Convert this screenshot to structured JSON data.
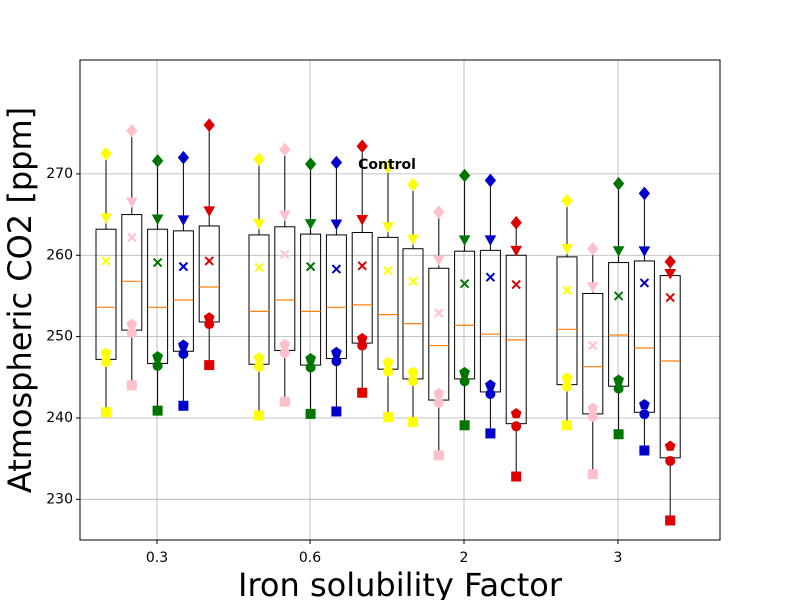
{
  "chart_data": {
    "type": "box",
    "title": "",
    "xlabel": "Iron solubility Factor",
    "ylabel": "Atmospheric CO2 [ppm]",
    "ylim": [
      225,
      284
    ],
    "yticks": [
      230,
      240,
      250,
      260,
      270
    ],
    "grid": true,
    "groups": [
      "0.3",
      "0.6",
      "2",
      "3"
    ],
    "annotation": "Control",
    "annotation_anchor": {
      "group": "0.6",
      "y": 271.2
    },
    "colors": {
      "box_edge": "#000000",
      "median": "#ff7f0e",
      "grid": "#b0b0b0",
      "series": [
        "#ffff00",
        "#ffc0cb",
        "#007500",
        "#0000cc",
        "#dd0000"
      ]
    },
    "boxes": [
      {
        "group": "0.3",
        "series": 0,
        "min": 240.7,
        "q1": 247.2,
        "median": 253.6,
        "q3": 263.2,
        "max": 272.5,
        "mean": 259.3
      },
      {
        "group": "0.3",
        "series": 1,
        "min": 244.0,
        "q1": 250.8,
        "median": 256.8,
        "q3": 265.0,
        "max": 275.3,
        "mean": 262.2
      },
      {
        "group": "0.3",
        "series": 2,
        "min": 240.9,
        "q1": 246.7,
        "median": 253.6,
        "q3": 263.2,
        "max": 271.6,
        "mean": 259.1
      },
      {
        "group": "0.3",
        "series": 3,
        "min": 241.5,
        "q1": 248.2,
        "median": 254.5,
        "q3": 263.0,
        "max": 272.0,
        "mean": 258.6
      },
      {
        "group": "0.3",
        "series": 4,
        "min": 246.5,
        "q1": 251.8,
        "median": 256.1,
        "q3": 263.6,
        "max": 276.0,
        "mean": 259.3
      },
      {
        "group": "0.6",
        "series": 0,
        "min": 240.3,
        "q1": 246.6,
        "median": 253.1,
        "q3": 262.5,
        "max": 271.8,
        "mean": 258.5
      },
      {
        "group": "0.6",
        "series": 1,
        "min": 242.0,
        "q1": 248.3,
        "median": 254.5,
        "q3": 263.5,
        "max": 273.0,
        "mean": 260.1
      },
      {
        "group": "0.6",
        "series": 2,
        "min": 240.5,
        "q1": 246.5,
        "median": 253.1,
        "q3": 262.6,
        "max": 271.2,
        "mean": 258.6
      },
      {
        "group": "0.6",
        "series": 3,
        "min": 240.8,
        "q1": 247.3,
        "median": 253.6,
        "q3": 262.5,
        "max": 271.4,
        "mean": 258.3
      },
      {
        "group": "0.6",
        "series": 4,
        "min": 243.1,
        "q1": 249.2,
        "median": 253.9,
        "q3": 262.8,
        "max": 273.4,
        "mean": 258.7
      },
      {
        "group": "0.6",
        "series": 5,
        "min": 240.1,
        "q1": 246.0,
        "median": 252.7,
        "q3": 262.2,
        "max": 270.9,
        "mean": 258.1
      },
      {
        "group": "2",
        "series": 0,
        "min": 239.5,
        "q1": 244.8,
        "median": 251.6,
        "q3": 260.8,
        "max": 268.7,
        "mean": 256.8
      },
      {
        "group": "2",
        "series": 1,
        "min": 235.4,
        "q1": 242.2,
        "median": 248.9,
        "q3": 258.4,
        "max": 265.3,
        "mean": 252.9
      },
      {
        "group": "2",
        "series": 2,
        "min": 239.1,
        "q1": 244.8,
        "median": 251.4,
        "q3": 260.5,
        "max": 269.8,
        "mean": 256.5
      },
      {
        "group": "2",
        "series": 3,
        "min": 238.1,
        "q1": 243.2,
        "median": 250.3,
        "q3": 260.6,
        "max": 269.2,
        "mean": 257.3
      },
      {
        "group": "2",
        "series": 4,
        "min": 232.8,
        "q1": 239.3,
        "median": 249.6,
        "q3": 260.0,
        "max": 264.0,
        "mean": 256.4
      },
      {
        "group": "3",
        "series": 0,
        "min": 239.1,
        "q1": 244.1,
        "median": 250.9,
        "q3": 259.8,
        "max": 266.7,
        "mean": 255.7
      },
      {
        "group": "3",
        "series": 1,
        "min": 233.1,
        "q1": 240.5,
        "median": 246.3,
        "q3": 255.3,
        "max": 260.8,
        "mean": 248.9
      },
      {
        "group": "3",
        "series": 2,
        "min": 238.0,
        "q1": 243.9,
        "median": 250.2,
        "q3": 259.1,
        "max": 268.8,
        "mean": 255.0
      },
      {
        "group": "3",
        "series": 3,
        "min": 236.0,
        "q1": 240.7,
        "median": 248.6,
        "q3": 259.3,
        "max": 267.6,
        "mean": 256.6
      },
      {
        "group": "3",
        "series": 4,
        "min": 227.4,
        "q1": 235.1,
        "median": 247.0,
        "q3": 257.5,
        "max": 259.2,
        "mean": 254.8
      }
    ]
  }
}
